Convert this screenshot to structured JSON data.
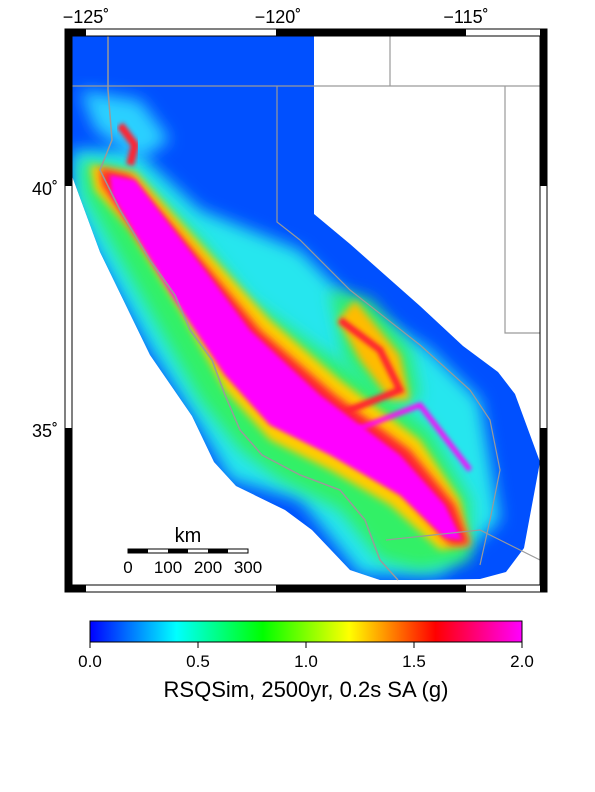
{
  "map": {
    "lon_labels": [
      "−125˚",
      "−120˚",
      "−115˚"
    ],
    "lat_labels": [
      "40˚",
      "35˚"
    ],
    "scale_bar": {
      "unit": "km",
      "ticks": [
        "0",
        "100",
        "200",
        "300"
      ]
    },
    "land_color": "#ffffff",
    "border_color": "#9a9a9a",
    "frame_color": "#000000"
  },
  "colorbar": {
    "ticks": [
      "0.0",
      "0.5",
      "1.0",
      "1.5",
      "2.0"
    ],
    "label": "RSQSim, 2500yr, 0.2s SA (g)",
    "colors": [
      "#0000ff",
      "#00ffff",
      "#00ff00",
      "#ffff00",
      "#ff0000",
      "#ff00ff"
    ]
  }
}
